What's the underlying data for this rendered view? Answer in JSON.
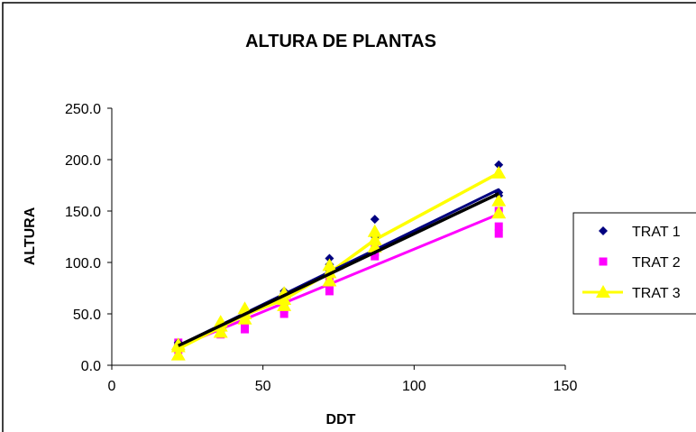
{
  "chart_data": {
    "type": "scatter",
    "title": "ALTURA DE PLANTAS",
    "xlabel": "DDT",
    "ylabel": "ALTURA",
    "xlim": [
      0,
      150
    ],
    "ylim": [
      0,
      250
    ],
    "x_ticks": [
      "0",
      "50",
      "100",
      "150"
    ],
    "y_ticks": [
      "0.0",
      "50.0",
      "100.0",
      "150.0",
      "200.0",
      "250.0"
    ],
    "grid": false,
    "legend_position": "right",
    "series": [
      {
        "name": "TRAT 1",
        "color": "#000080",
        "marker": "diamond",
        "points": [
          [
            22,
            18
          ],
          [
            22,
            20
          ],
          [
            22,
            22
          ],
          [
            36,
            35
          ],
          [
            36,
            38
          ],
          [
            36,
            40
          ],
          [
            44,
            45
          ],
          [
            44,
            48
          ],
          [
            44,
            52
          ],
          [
            57,
            65
          ],
          [
            57,
            70
          ],
          [
            57,
            72
          ],
          [
            72,
            92
          ],
          [
            72,
            98
          ],
          [
            72,
            104
          ],
          [
            87,
            112
          ],
          [
            87,
            125
          ],
          [
            87,
            142
          ],
          [
            128,
            165
          ],
          [
            128,
            168
          ],
          [
            128,
            195
          ]
        ],
        "trend": {
          "x0": 22,
          "y0": 19,
          "x1": 128,
          "y1": 171
        }
      },
      {
        "name": "TRAT 2",
        "color": "#FF00FF",
        "marker": "square",
        "points": [
          [
            22,
            15
          ],
          [
            22,
            18
          ],
          [
            22,
            22
          ],
          [
            36,
            30
          ],
          [
            36,
            34
          ],
          [
            36,
            38
          ],
          [
            44,
            35
          ],
          [
            44,
            40
          ],
          [
            44,
            45
          ],
          [
            57,
            50
          ],
          [
            57,
            55
          ],
          [
            57,
            62
          ],
          [
            72,
            72
          ],
          [
            72,
            78
          ],
          [
            72,
            85
          ],
          [
            87,
            106
          ],
          [
            87,
            110
          ],
          [
            87,
            115
          ],
          [
            128,
            128
          ],
          [
            128,
            135
          ],
          [
            128,
            150
          ]
        ],
        "trend": {
          "x0": 22,
          "y0": 18,
          "x1": 128,
          "y1": 147
        }
      },
      {
        "name": "TRAT 3",
        "color": "#FFFF00",
        "marker": "triangle",
        "points": [
          [
            22,
            10
          ],
          [
            22,
            18
          ],
          [
            22,
            20
          ],
          [
            36,
            32
          ],
          [
            36,
            38
          ],
          [
            36,
            42
          ],
          [
            44,
            45
          ],
          [
            44,
            50
          ],
          [
            44,
            55
          ],
          [
            57,
            58
          ],
          [
            57,
            64
          ],
          [
            57,
            70
          ],
          [
            72,
            82
          ],
          [
            72,
            90
          ],
          [
            72,
            97
          ],
          [
            87,
            115
          ],
          [
            87,
            122
          ],
          [
            87,
            130
          ],
          [
            128,
            148
          ],
          [
            128,
            160
          ],
          [
            128,
            187
          ]
        ],
        "trend_points": [
          [
            22,
            16
          ],
          [
            36,
            37
          ],
          [
            44,
            49
          ],
          [
            57,
            64
          ],
          [
            72,
            90
          ],
          [
            87,
            122
          ],
          [
            128,
            187
          ]
        ]
      }
    ],
    "overall_trend": {
      "color": "#000000",
      "x0": 22,
      "y0": 19,
      "x1": 128,
      "y1": 167
    }
  }
}
